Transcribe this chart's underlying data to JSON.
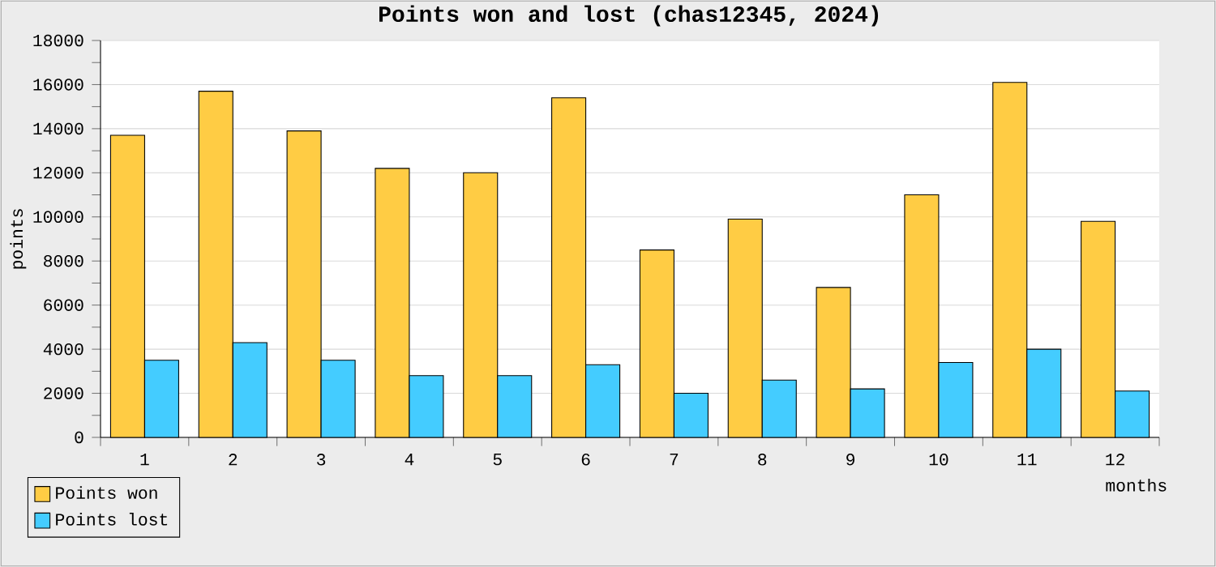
{
  "chart_data": {
    "type": "bar",
    "title": "Points won and lost (chas12345, 2024)",
    "xlabel": "months",
    "ylabel": "points",
    "categories": [
      "1",
      "2",
      "3",
      "4",
      "5",
      "6",
      "7",
      "8",
      "9",
      "10",
      "11",
      "12"
    ],
    "series": [
      {
        "name": "Points won",
        "color": "#ffcc44",
        "values": [
          13700,
          15700,
          13900,
          12200,
          12000,
          15400,
          8500,
          9900,
          6800,
          11000,
          16100,
          9800
        ]
      },
      {
        "name": "Points lost",
        "color": "#44ccff",
        "values": [
          3500,
          4300,
          3500,
          2800,
          2800,
          3300,
          2000,
          2600,
          2200,
          3400,
          4000,
          2100
        ]
      }
    ],
    "ylim": [
      0,
      18000
    ],
    "yticks": [
      0,
      2000,
      4000,
      6000,
      8000,
      10000,
      12000,
      14000,
      16000,
      18000
    ],
    "grid": "y",
    "legend": "bottom left"
  }
}
